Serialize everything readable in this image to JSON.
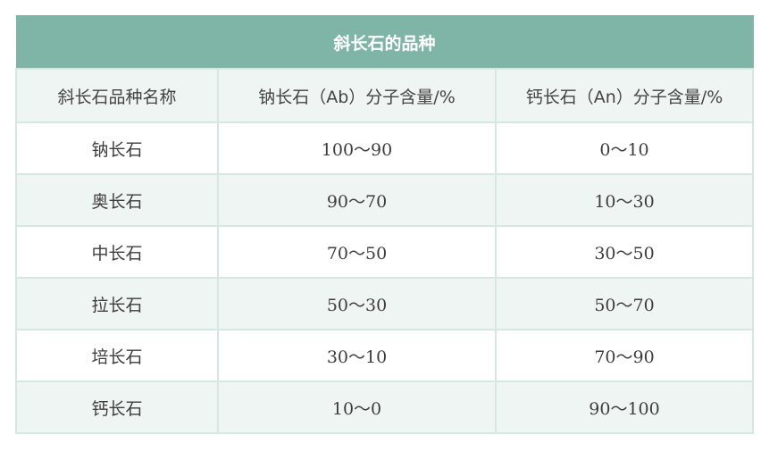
{
  "table": {
    "title": "斜长石的品种",
    "headers": [
      "斜长石品种名称",
      "钠长石（Ab）分子含量/%",
      "钙长石（An）分子含量/%"
    ],
    "rows": [
      [
        "钠长石",
        "100～90",
        "0～10"
      ],
      [
        "奥长石",
        "90～70",
        "10～30"
      ],
      [
        "中长石",
        "70～50",
        "30～50"
      ],
      [
        "拉长石",
        "50～30",
        "50～70"
      ],
      [
        "培长石",
        "30～10",
        "70～90"
      ],
      [
        "钙长石",
        "10～0",
        "90～100"
      ]
    ]
  },
  "colors": {
    "title_bg": "#7fb5a6",
    "stripe_bg": "#eef5f3",
    "border": "#d4e8e1"
  }
}
